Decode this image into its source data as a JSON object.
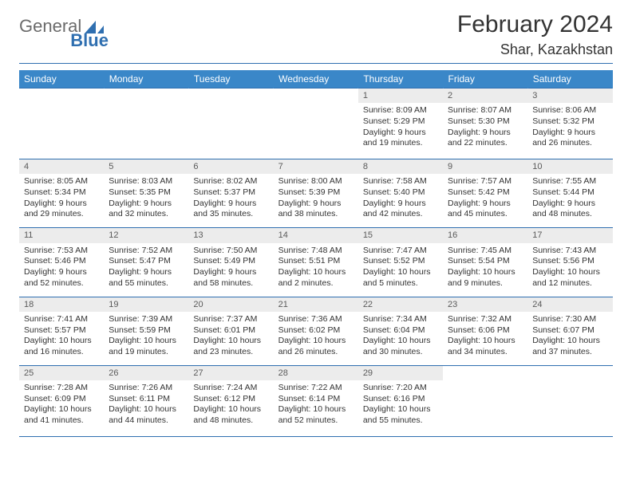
{
  "logo": {
    "general": "General",
    "blue": "Blue"
  },
  "title": "February 2024",
  "location": "Shar, Kazakhstan",
  "colors": {
    "header_bg": "#3a87c8",
    "border": "#2f6fb0",
    "dayhead_bg": "#ececec",
    "text": "#333333"
  },
  "days": [
    "Sunday",
    "Monday",
    "Tuesday",
    "Wednesday",
    "Thursday",
    "Friday",
    "Saturday"
  ],
  "weeks": [
    [
      null,
      null,
      null,
      null,
      {
        "n": "1",
        "sr": "Sunrise: 8:09 AM",
        "ss": "Sunset: 5:29 PM",
        "d1": "Daylight: 9 hours",
        "d2": "and 19 minutes."
      },
      {
        "n": "2",
        "sr": "Sunrise: 8:07 AM",
        "ss": "Sunset: 5:30 PM",
        "d1": "Daylight: 9 hours",
        "d2": "and 22 minutes."
      },
      {
        "n": "3",
        "sr": "Sunrise: 8:06 AM",
        "ss": "Sunset: 5:32 PM",
        "d1": "Daylight: 9 hours",
        "d2": "and 26 minutes."
      }
    ],
    [
      {
        "n": "4",
        "sr": "Sunrise: 8:05 AM",
        "ss": "Sunset: 5:34 PM",
        "d1": "Daylight: 9 hours",
        "d2": "and 29 minutes."
      },
      {
        "n": "5",
        "sr": "Sunrise: 8:03 AM",
        "ss": "Sunset: 5:35 PM",
        "d1": "Daylight: 9 hours",
        "d2": "and 32 minutes."
      },
      {
        "n": "6",
        "sr": "Sunrise: 8:02 AM",
        "ss": "Sunset: 5:37 PM",
        "d1": "Daylight: 9 hours",
        "d2": "and 35 minutes."
      },
      {
        "n": "7",
        "sr": "Sunrise: 8:00 AM",
        "ss": "Sunset: 5:39 PM",
        "d1": "Daylight: 9 hours",
        "d2": "and 38 minutes."
      },
      {
        "n": "8",
        "sr": "Sunrise: 7:58 AM",
        "ss": "Sunset: 5:40 PM",
        "d1": "Daylight: 9 hours",
        "d2": "and 42 minutes."
      },
      {
        "n": "9",
        "sr": "Sunrise: 7:57 AM",
        "ss": "Sunset: 5:42 PM",
        "d1": "Daylight: 9 hours",
        "d2": "and 45 minutes."
      },
      {
        "n": "10",
        "sr": "Sunrise: 7:55 AM",
        "ss": "Sunset: 5:44 PM",
        "d1": "Daylight: 9 hours",
        "d2": "and 48 minutes."
      }
    ],
    [
      {
        "n": "11",
        "sr": "Sunrise: 7:53 AM",
        "ss": "Sunset: 5:46 PM",
        "d1": "Daylight: 9 hours",
        "d2": "and 52 minutes."
      },
      {
        "n": "12",
        "sr": "Sunrise: 7:52 AM",
        "ss": "Sunset: 5:47 PM",
        "d1": "Daylight: 9 hours",
        "d2": "and 55 minutes."
      },
      {
        "n": "13",
        "sr": "Sunrise: 7:50 AM",
        "ss": "Sunset: 5:49 PM",
        "d1": "Daylight: 9 hours",
        "d2": "and 58 minutes."
      },
      {
        "n": "14",
        "sr": "Sunrise: 7:48 AM",
        "ss": "Sunset: 5:51 PM",
        "d1": "Daylight: 10 hours",
        "d2": "and 2 minutes."
      },
      {
        "n": "15",
        "sr": "Sunrise: 7:47 AM",
        "ss": "Sunset: 5:52 PM",
        "d1": "Daylight: 10 hours",
        "d2": "and 5 minutes."
      },
      {
        "n": "16",
        "sr": "Sunrise: 7:45 AM",
        "ss": "Sunset: 5:54 PM",
        "d1": "Daylight: 10 hours",
        "d2": "and 9 minutes."
      },
      {
        "n": "17",
        "sr": "Sunrise: 7:43 AM",
        "ss": "Sunset: 5:56 PM",
        "d1": "Daylight: 10 hours",
        "d2": "and 12 minutes."
      }
    ],
    [
      {
        "n": "18",
        "sr": "Sunrise: 7:41 AM",
        "ss": "Sunset: 5:57 PM",
        "d1": "Daylight: 10 hours",
        "d2": "and 16 minutes."
      },
      {
        "n": "19",
        "sr": "Sunrise: 7:39 AM",
        "ss": "Sunset: 5:59 PM",
        "d1": "Daylight: 10 hours",
        "d2": "and 19 minutes."
      },
      {
        "n": "20",
        "sr": "Sunrise: 7:37 AM",
        "ss": "Sunset: 6:01 PM",
        "d1": "Daylight: 10 hours",
        "d2": "and 23 minutes."
      },
      {
        "n": "21",
        "sr": "Sunrise: 7:36 AM",
        "ss": "Sunset: 6:02 PM",
        "d1": "Daylight: 10 hours",
        "d2": "and 26 minutes."
      },
      {
        "n": "22",
        "sr": "Sunrise: 7:34 AM",
        "ss": "Sunset: 6:04 PM",
        "d1": "Daylight: 10 hours",
        "d2": "and 30 minutes."
      },
      {
        "n": "23",
        "sr": "Sunrise: 7:32 AM",
        "ss": "Sunset: 6:06 PM",
        "d1": "Daylight: 10 hours",
        "d2": "and 34 minutes."
      },
      {
        "n": "24",
        "sr": "Sunrise: 7:30 AM",
        "ss": "Sunset: 6:07 PM",
        "d1": "Daylight: 10 hours",
        "d2": "and 37 minutes."
      }
    ],
    [
      {
        "n": "25",
        "sr": "Sunrise: 7:28 AM",
        "ss": "Sunset: 6:09 PM",
        "d1": "Daylight: 10 hours",
        "d2": "and 41 minutes."
      },
      {
        "n": "26",
        "sr": "Sunrise: 7:26 AM",
        "ss": "Sunset: 6:11 PM",
        "d1": "Daylight: 10 hours",
        "d2": "and 44 minutes."
      },
      {
        "n": "27",
        "sr": "Sunrise: 7:24 AM",
        "ss": "Sunset: 6:12 PM",
        "d1": "Daylight: 10 hours",
        "d2": "and 48 minutes."
      },
      {
        "n": "28",
        "sr": "Sunrise: 7:22 AM",
        "ss": "Sunset: 6:14 PM",
        "d1": "Daylight: 10 hours",
        "d2": "and 52 minutes."
      },
      {
        "n": "29",
        "sr": "Sunrise: 7:20 AM",
        "ss": "Sunset: 6:16 PM",
        "d1": "Daylight: 10 hours",
        "d2": "and 55 minutes."
      },
      null,
      null
    ]
  ]
}
